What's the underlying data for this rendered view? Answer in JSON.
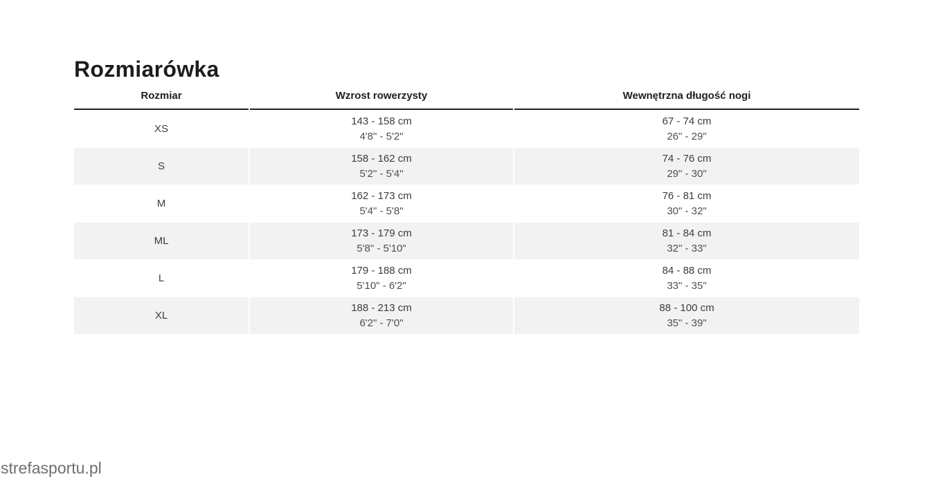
{
  "page": {
    "title": "Rozmiarówka",
    "watermark": "strefasportu.pl"
  },
  "colors": {
    "title": "#1d1d1b",
    "rule": "#1d1d1d",
    "text": "#3c3c3c",
    "text-secondary": "#4f4f4f",
    "stripe": "#f2f2f2",
    "watermark": "#6e6e6e",
    "header-text": "#212121"
  },
  "table": {
    "columns": [
      "Rozmiar",
      "Wzrost rowerzysty",
      "Wewnętrzna długość nogi"
    ],
    "rows": [
      {
        "size": "XS",
        "height_cm": "143 - 158 cm",
        "height_in": "4'8\" - 5'2\"",
        "inseam_cm": "67 - 74 cm",
        "inseam_in": "26\" - 29\""
      },
      {
        "size": "S",
        "height_cm": "158 - 162 cm",
        "height_in": "5'2\" - 5'4\"",
        "inseam_cm": "74 - 76 cm",
        "inseam_in": "29\" - 30\""
      },
      {
        "size": "M",
        "height_cm": "162 - 173 cm",
        "height_in": "5'4\" - 5'8\"",
        "inseam_cm": "76 - 81 cm",
        "inseam_in": "30\" - 32\""
      },
      {
        "size": "ML",
        "height_cm": "173 - 179 cm",
        "height_in": "5'8\" - 5'10\"",
        "inseam_cm": "81 - 84 cm",
        "inseam_in": "32\" - 33\""
      },
      {
        "size": "L",
        "height_cm": "179 - 188 cm",
        "height_in": "5'10\" - 6'2\"",
        "inseam_cm": "84 - 88 cm",
        "inseam_in": "33\" - 35\""
      },
      {
        "size": "XL",
        "height_cm": "188 - 213 cm",
        "height_in": "6'2\" - 7'0\"",
        "inseam_cm": "88 - 100 cm",
        "inseam_in": "35\" - 39\""
      }
    ]
  }
}
